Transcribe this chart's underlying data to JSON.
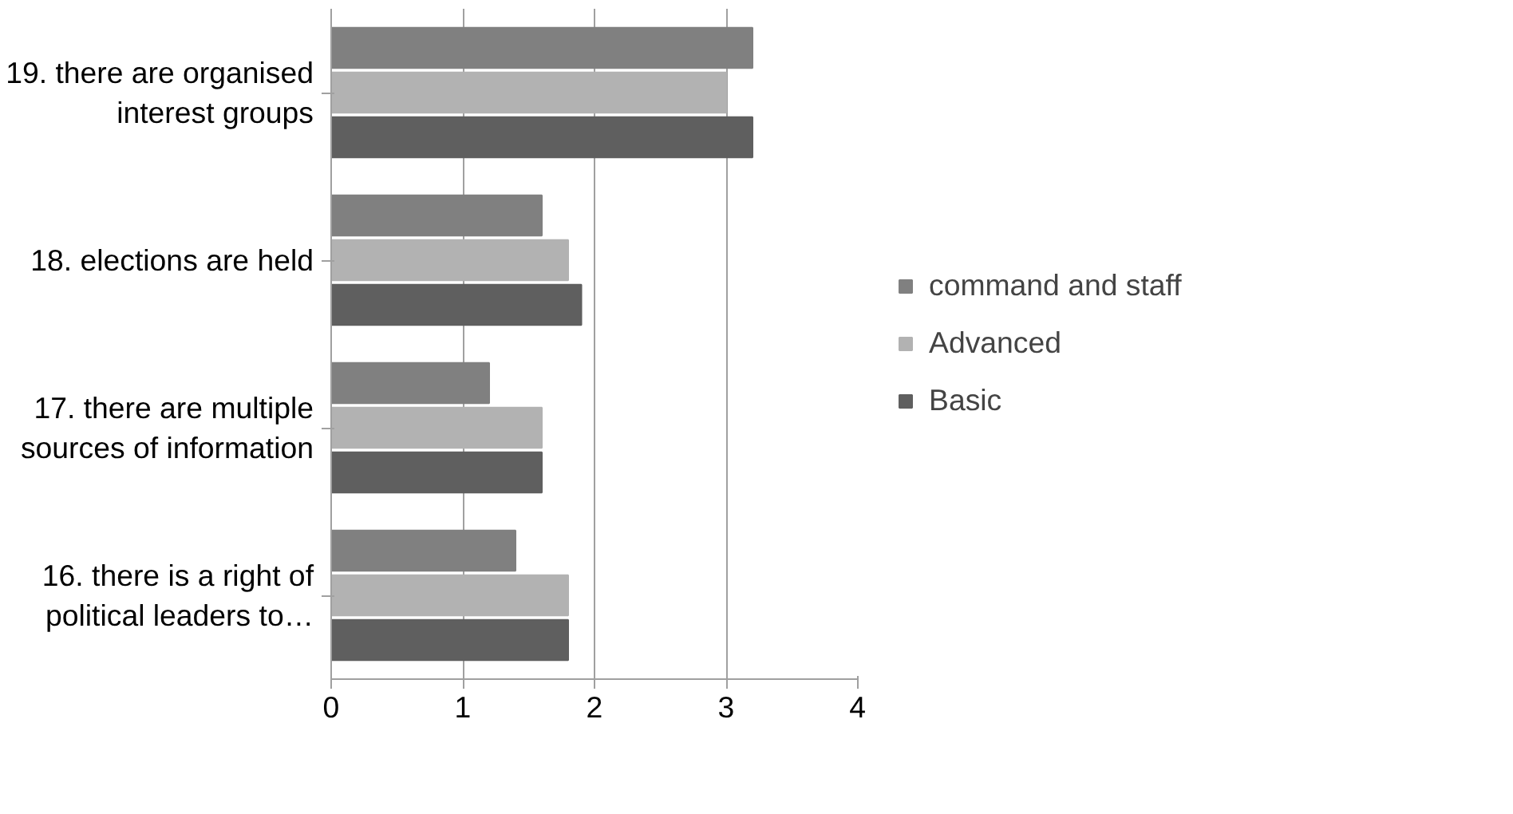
{
  "chart_data": {
    "type": "bar",
    "orientation": "horizontal",
    "categories": [
      "19. there are organised\ninterest groups",
      "18. elections are held",
      "17. there are multiple\nsources of information",
      "16. there is a right of\npolitical leaders to…"
    ],
    "series": [
      {
        "name": "command and staff",
        "color": "#808080",
        "values": [
          3.2,
          1.6,
          1.2,
          1.4
        ]
      },
      {
        "name": "Advanced",
        "color": "#b2b2b2",
        "values": [
          3.0,
          1.8,
          1.6,
          1.8
        ]
      },
      {
        "name": "Basic",
        "color": "#5f5f5f",
        "values": [
          3.2,
          1.9,
          1.6,
          1.8
        ]
      }
    ],
    "xlim": [
      0,
      4
    ],
    "xticks": [
      0,
      1,
      2,
      3,
      4
    ],
    "grid": "x",
    "legend": "right"
  }
}
